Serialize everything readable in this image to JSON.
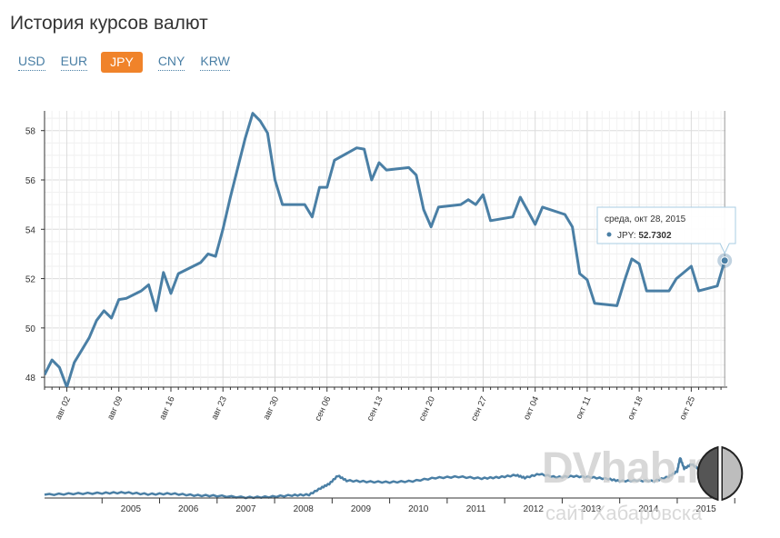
{
  "page": {
    "title": "История курсов валют"
  },
  "tabs": [
    {
      "label": "USD",
      "active": false
    },
    {
      "label": "EUR",
      "active": false
    },
    {
      "label": "JPY",
      "active": true
    },
    {
      "label": "CNY",
      "active": false
    },
    {
      "label": "KRW",
      "active": false
    }
  ],
  "colors": {
    "line": "#4a7fa5",
    "accent": "#f0832a",
    "grid": "#e6e6e6",
    "tab_link": "#4a7fa5"
  },
  "tooltip": {
    "date": "среда, окт 28, 2015",
    "series": "JPY",
    "value": "52.7302"
  },
  "watermark": {
    "brand": "DVhab.ru",
    "subtitle": "сайт Хабаровска"
  },
  "chart_data": [
    {
      "type": "line",
      "name": "main",
      "x_tick_labels": [
        "авг 02",
        "авг 09",
        "авг 16",
        "авг 23",
        "авг 30",
        "сен 06",
        "сен 13",
        "сен 20",
        "сен 27",
        "окт 04",
        "окт 11",
        "окт 18",
        "окт 25"
      ],
      "y_ticks": [
        48,
        50,
        52,
        54,
        56,
        58
      ],
      "ylim": [
        47.6,
        58.8
      ],
      "xlim": [
        "2015-07-30",
        "2015-10-28"
      ],
      "grid": true,
      "series": [
        {
          "name": "JPY",
          "points": [
            [
              "2015-07-30",
              48.1
            ],
            [
              "2015-07-31",
              48.7
            ],
            [
              "2015-08-01",
              48.4
            ],
            [
              "2015-08-02",
              47.6
            ],
            [
              "2015-08-03",
              48.6
            ],
            [
              "2015-08-04",
              49.1
            ],
            [
              "2015-08-05",
              49.6
            ],
            [
              "2015-08-06",
              50.3
            ],
            [
              "2015-08-07",
              50.7
            ],
            [
              "2015-08-08",
              50.4
            ],
            [
              "2015-08-09",
              51.15
            ],
            [
              "2015-08-10",
              51.2
            ],
            [
              "2015-08-12",
              51.5
            ],
            [
              "2015-08-13",
              51.75
            ],
            [
              "2015-08-14",
              50.7
            ],
            [
              "2015-08-15",
              52.25
            ],
            [
              "2015-08-16",
              51.4
            ],
            [
              "2015-08-17",
              52.2
            ],
            [
              "2015-08-20",
              52.65
            ],
            [
              "2015-08-21",
              53.0
            ],
            [
              "2015-08-22",
              52.9
            ],
            [
              "2015-08-23",
              54.0
            ],
            [
              "2015-08-24",
              55.3
            ],
            [
              "2015-08-25",
              56.5
            ],
            [
              "2015-08-26",
              57.7
            ],
            [
              "2015-08-27",
              58.7
            ],
            [
              "2015-08-28",
              58.4
            ],
            [
              "2015-08-29",
              57.9
            ],
            [
              "2015-08-30",
              56.0
            ],
            [
              "2015-08-31",
              55.0
            ],
            [
              "2015-09-03",
              55.0
            ],
            [
              "2015-09-04",
              54.5
            ],
            [
              "2015-09-05",
              55.7
            ],
            [
              "2015-09-06",
              55.7
            ],
            [
              "2015-09-07",
              56.8
            ],
            [
              "2015-09-10",
              57.3
            ],
            [
              "2015-09-11",
              57.25
            ],
            [
              "2015-09-12",
              56.0
            ],
            [
              "2015-09-13",
              56.7
            ],
            [
              "2015-09-14",
              56.4
            ],
            [
              "2015-09-17",
              56.5
            ],
            [
              "2015-09-18",
              56.2
            ],
            [
              "2015-09-19",
              54.8
            ],
            [
              "2015-09-20",
              54.1
            ],
            [
              "2015-09-21",
              54.9
            ],
            [
              "2015-09-24",
              55.0
            ],
            [
              "2015-09-25",
              55.2
            ],
            [
              "2015-09-26",
              55.0
            ],
            [
              "2015-09-27",
              55.4
            ],
            [
              "2015-09-28",
              54.35
            ],
            [
              "2015-10-01",
              54.5
            ],
            [
              "2015-10-02",
              55.3
            ],
            [
              "2015-10-03",
              54.75
            ],
            [
              "2015-10-04",
              54.2
            ],
            [
              "2015-10-05",
              54.9
            ],
            [
              "2015-10-08",
              54.6
            ],
            [
              "2015-10-09",
              54.1
            ],
            [
              "2015-10-10",
              52.2
            ],
            [
              "2015-10-11",
              51.95
            ],
            [
              "2015-10-12",
              51.0
            ],
            [
              "2015-10-15",
              50.9
            ],
            [
              "2015-10-16",
              51.9
            ],
            [
              "2015-10-17",
              52.8
            ],
            [
              "2015-10-18",
              52.6
            ],
            [
              "2015-10-19",
              51.5
            ],
            [
              "2015-10-22",
              51.5
            ],
            [
              "2015-10-23",
              52.0
            ],
            [
              "2015-10-25",
              52.5
            ],
            [
              "2015-10-26",
              51.5
            ],
            [
              "2015-10-28.5",
              51.7
            ],
            [
              "2015-10-29.5",
              52.73
            ]
          ]
        }
      ]
    },
    {
      "type": "line",
      "name": "navigator",
      "x_tick_labels": [
        "2005",
        "2006",
        "2007",
        "2008",
        "2009",
        "2010",
        "2011",
        "2012",
        "2013",
        "2014",
        "2015"
      ],
      "series": [
        {
          "name": "JPY",
          "values": [
            [
              2004.0,
              0.72
            ],
            [
              2004.5,
              0.74
            ],
            [
              2005.0,
              0.75
            ],
            [
              2005.4,
              0.76
            ],
            [
              2005.8,
              0.73
            ],
            [
              2006.2,
              0.74
            ],
            [
              2006.6,
              0.71
            ],
            [
              2007.0,
              0.7
            ],
            [
              2007.5,
              0.67
            ],
            [
              2007.9,
              0.68
            ],
            [
              2008.3,
              0.71
            ],
            [
              2008.6,
              0.72
            ],
            [
              2008.8,
              0.84
            ],
            [
              2008.95,
              0.92
            ],
            [
              2009.1,
              1.07
            ],
            [
              2009.25,
              0.98
            ],
            [
              2009.6,
              0.96
            ],
            [
              2010.0,
              0.95
            ],
            [
              2010.4,
              0.97
            ],
            [
              2010.8,
              1.03
            ],
            [
              2011.2,
              1.05
            ],
            [
              2011.6,
              1.02
            ],
            [
              2011.9,
              1.04
            ],
            [
              2012.2,
              1.08
            ],
            [
              2012.35,
              1.03
            ],
            [
              2012.6,
              1.1
            ],
            [
              2012.9,
              1.04
            ],
            [
              2013.2,
              1.06
            ],
            [
              2013.5,
              1.04
            ],
            [
              2013.8,
              1.01
            ],
            [
              2014.0,
              0.97
            ],
            [
              2014.3,
              0.98
            ],
            [
              2014.6,
              0.97
            ],
            [
              2014.85,
              1.05
            ],
            [
              2015.0,
              1.15
            ],
            [
              2015.05,
              1.4
            ],
            [
              2015.12,
              1.2
            ],
            [
              2015.25,
              1.28
            ],
            [
              2015.4,
              1.18
            ],
            [
              2015.55,
              1.35
            ],
            [
              2015.65,
              1.42
            ],
            [
              2015.75,
              1.3
            ],
            [
              2015.85,
              1.24
            ]
          ]
        }
      ]
    }
  ]
}
